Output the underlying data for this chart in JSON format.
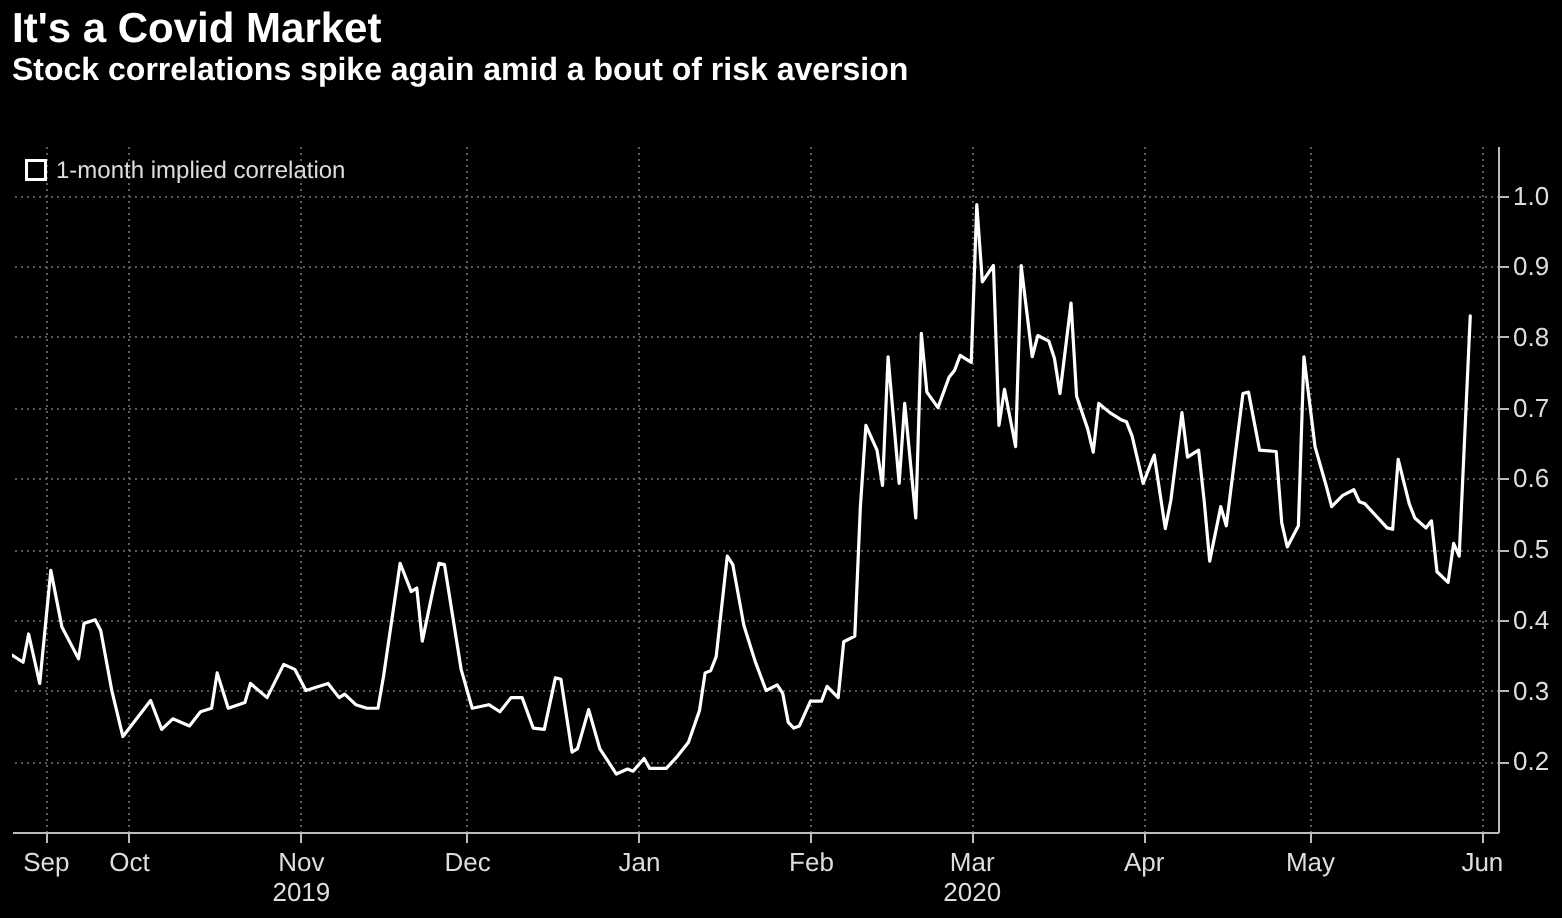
{
  "chart_data": {
    "type": "line",
    "title": "It's a Covid Market",
    "subtitle": "Stock correlations spike again amid a bout of risk aversion",
    "x": [
      "2019-09-10",
      "2019-09-12",
      "2019-09-13",
      "2019-09-15",
      "2019-09-17",
      "2019-09-19",
      "2019-09-21",
      "2019-09-22",
      "2019-09-23",
      "2019-09-25",
      "2019-09-26",
      "2019-09-28",
      "2019-09-30",
      "2019-10-05",
      "2019-10-07",
      "2019-10-09",
      "2019-10-12",
      "2019-10-14",
      "2019-10-16",
      "2019-10-17",
      "2019-10-19",
      "2019-10-22",
      "2019-10-23",
      "2019-10-26",
      "2019-10-29",
      "2019-10-31",
      "2019-11-02",
      "2019-11-06",
      "2019-11-08",
      "2019-11-09",
      "2019-11-11",
      "2019-11-13",
      "2019-11-15",
      "2019-11-16",
      "2019-11-19",
      "2019-11-21",
      "2019-11-22",
      "2019-11-23",
      "2019-11-25",
      "2019-11-26",
      "2019-11-27",
      "2019-11-30",
      "2019-12-02",
      "2019-12-05",
      "2019-12-07",
      "2019-12-09",
      "2019-12-11",
      "2019-12-13",
      "2019-12-15",
      "2019-12-17",
      "2019-12-18",
      "2019-12-20",
      "2019-12-21",
      "2019-12-23",
      "2019-12-25",
      "2019-12-28",
      "2019-12-30",
      "2019-12-31",
      "2020-01-02",
      "2020-01-03",
      "2020-01-06",
      "2020-01-08",
      "2020-01-10",
      "2020-01-12",
      "2020-01-13",
      "2020-01-14",
      "2020-01-15",
      "2020-01-17",
      "2020-01-18",
      "2020-01-20",
      "2020-01-22",
      "2020-01-24",
      "2020-01-26",
      "2020-01-27",
      "2020-01-28",
      "2020-01-29",
      "2020-01-30",
      "2020-02-01",
      "2020-02-03",
      "2020-02-04",
      "2020-02-06",
      "2020-02-07",
      "2020-02-09",
      "2020-02-10",
      "2020-02-11",
      "2020-02-13",
      "2020-02-14",
      "2020-02-15",
      "2020-02-17",
      "2020-02-18",
      "2020-02-20",
      "2020-02-21",
      "2020-02-22",
      "2020-02-24",
      "2020-02-26",
      "2020-02-27",
      "2020-02-28",
      "2020-03-01",
      "2020-03-02",
      "2020-03-03",
      "2020-03-05",
      "2020-03-06",
      "2020-03-07",
      "2020-03-09",
      "2020-03-10",
      "2020-03-12",
      "2020-03-13",
      "2020-03-15",
      "2020-03-16",
      "2020-03-17",
      "2020-03-19",
      "2020-03-20",
      "2020-03-22",
      "2020-03-23",
      "2020-03-24",
      "2020-03-26",
      "2020-03-28",
      "2020-03-29",
      "2020-03-30",
      "2020-04-01",
      "2020-04-03",
      "2020-04-05",
      "2020-04-06",
      "2020-04-08",
      "2020-04-09",
      "2020-04-11",
      "2020-04-12",
      "2020-04-13",
      "2020-04-15",
      "2020-04-16",
      "2020-04-19",
      "2020-04-20",
      "2020-04-22",
      "2020-04-25",
      "2020-04-26",
      "2020-04-27",
      "2020-04-29",
      "2020-04-30",
      "2020-05-02",
      "2020-05-04",
      "2020-05-05",
      "2020-05-07",
      "2020-05-09",
      "2020-05-10",
      "2020-05-11",
      "2020-05-15",
      "2020-05-16",
      "2020-05-17",
      "2020-05-19",
      "2020-05-20",
      "2020-05-22",
      "2020-05-23",
      "2020-05-24",
      "2020-05-26",
      "2020-05-27",
      "2020-05-28",
      "2020-05-30"
    ],
    "series": [
      {
        "name": "1-month implied correlation",
        "color": "#ffffff",
        "values": [
          0.35,
          0.34,
          0.38,
          0.31,
          0.47,
          0.39,
          0.36,
          0.345,
          0.395,
          0.4,
          0.385,
          0.3,
          0.235,
          0.286,
          0.245,
          0.26,
          0.25,
          0.27,
          0.275,
          0.325,
          0.275,
          0.283,
          0.31,
          0.29,
          0.337,
          0.33,
          0.3,
          0.31,
          0.29,
          0.295,
          0.28,
          0.275,
          0.275,
          0.32,
          0.48,
          0.44,
          0.445,
          0.37,
          0.445,
          0.48,
          0.478,
          0.33,
          0.275,
          0.28,
          0.27,
          0.29,
          0.29,
          0.247,
          0.245,
          0.318,
          0.316,
          0.213,
          0.218,
          0.273,
          0.218,
          0.182,
          0.189,
          0.186,
          0.204,
          0.19,
          0.19,
          0.207,
          0.227,
          0.272,
          0.325,
          0.328,
          0.348,
          0.49,
          0.478,
          0.392,
          0.342,
          0.3,
          0.308,
          0.296,
          0.255,
          0.247,
          0.25,
          0.285,
          0.285,
          0.306,
          0.29,
          0.369,
          0.377,
          0.559,
          0.675,
          0.64,
          0.59,
          0.772,
          0.593,
          0.706,
          0.544,
          0.805,
          0.722,
          0.7,
          0.743,
          0.753,
          0.774,
          0.764,
          0.987,
          0.878,
          0.901,
          0.675,
          0.726,
          0.645,
          0.901,
          0.772,
          0.802,
          0.794,
          0.77,
          0.72,
          0.848,
          0.716,
          0.67,
          0.637,
          0.706,
          0.693,
          0.683,
          0.68,
          0.66,
          0.593,
          0.633,
          0.529,
          0.569,
          0.693,
          0.63,
          0.64,
          0.569,
          0.483,
          0.56,
          0.533,
          0.72,
          0.722,
          0.64,
          0.638,
          0.537,
          0.503,
          0.533,
          0.772,
          0.645,
          0.59,
          0.56,
          0.576,
          0.584,
          0.567,
          0.564,
          0.53,
          0.528,
          0.627,
          0.564,
          0.544,
          0.53,
          0.54,
          0.468,
          0.453,
          0.508,
          0.49,
          0.83
        ]
      }
    ],
    "xlim": [
      "2019-09-10",
      "2020-06-04"
    ],
    "xticks": [
      {
        "value": "2019-09-16",
        "label": "Sep"
      },
      {
        "value": "2019-10-01",
        "label": "Oct"
      },
      {
        "value": "2019-11-01",
        "label": "Nov\n2019"
      },
      {
        "value": "2019-12-01",
        "label": "Dec"
      },
      {
        "value": "2020-01-01",
        "label": "Jan"
      },
      {
        "value": "2020-02-01",
        "label": "Feb"
      },
      {
        "value": "2020-03-01",
        "label": "Mar\n2020"
      },
      {
        "value": "2020-04-01",
        "label": "Apr"
      },
      {
        "value": "2020-05-01",
        "label": "May"
      },
      {
        "value": "2020-06-01",
        "label": "Jun"
      }
    ],
    "ylim": [
      0.1,
      1.07
    ],
    "yticks": [
      0.2,
      0.3,
      0.4,
      0.5,
      0.6,
      0.7,
      0.8,
      0.9,
      {
        "value": 1,
        "label": "1.0"
      }
    ],
    "grid": true,
    "legend": "top left"
  }
}
